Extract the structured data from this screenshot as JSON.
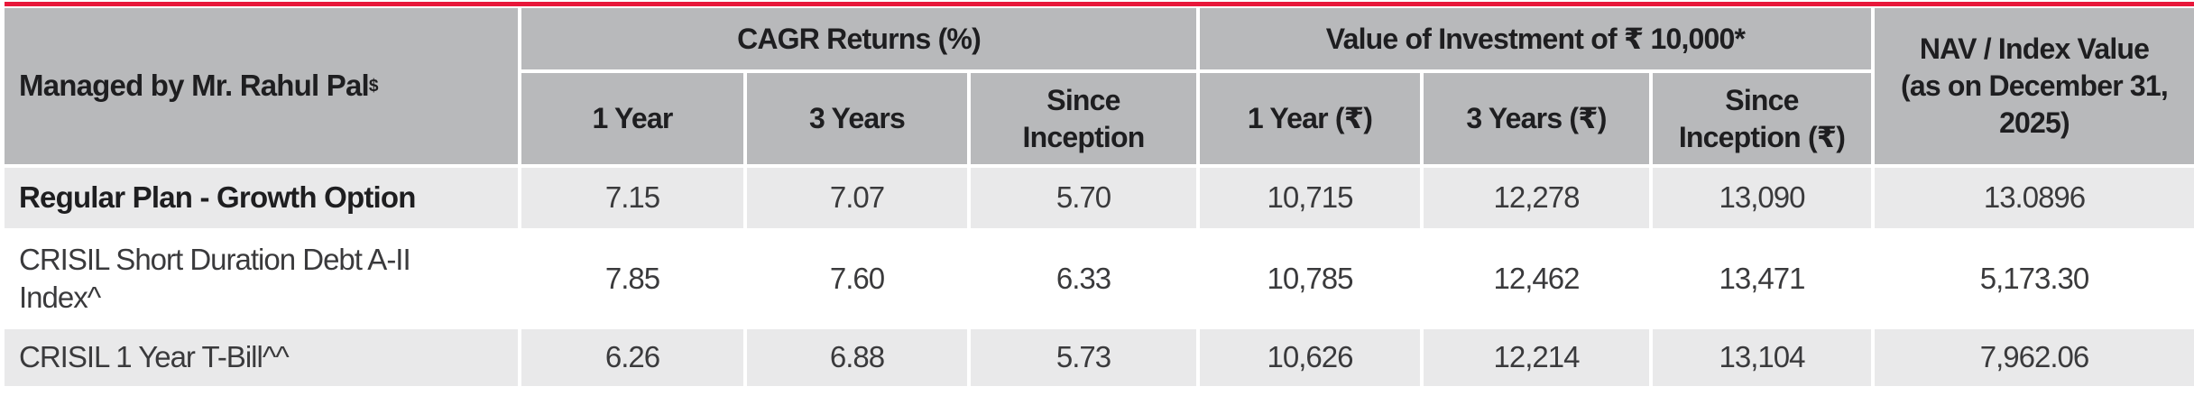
{
  "accent": {
    "top_bar_color": "#e8173a",
    "header_bg": "#b8b9bb",
    "alt_row_bg": "#e9e9ea",
    "header_text_color": "#1e1e20",
    "body_text_color": "#3a3a3c"
  },
  "table": {
    "manager_header": "Managed by Mr. Rahul Pal",
    "manager_header_sup": "$",
    "groups": [
      {
        "label": "CAGR Returns (%)",
        "columns": [
          "1 Year",
          "3 Years",
          "Since\nInception"
        ]
      },
      {
        "label": "Value of Investment of ₹ 10,000*",
        "columns": [
          "1 Year (₹)",
          "3 Years (₹)",
          "Since\nInception (₹)"
        ]
      }
    ],
    "nav_header": "NAV / Index Value\n(as on December 31,\n2025)",
    "rows": [
      {
        "label": "Regular Plan - Growth Option",
        "values": [
          "7.15",
          "7.07",
          "5.70",
          "10,715",
          "12,278",
          "13,090",
          "13.0896"
        ]
      },
      {
        "label": "CRISIL Short Duration Debt A-II\nIndex^",
        "values": [
          "7.85",
          "7.60",
          "6.33",
          "10,785",
          "12,462",
          "13,471",
          "5,173.30"
        ]
      },
      {
        "label": "CRISIL 1 Year T-Bill^^",
        "values": [
          "6.26",
          "6.88",
          "5.73",
          "10,626",
          "12,214",
          "13,104",
          "7,962.06"
        ]
      }
    ]
  }
}
